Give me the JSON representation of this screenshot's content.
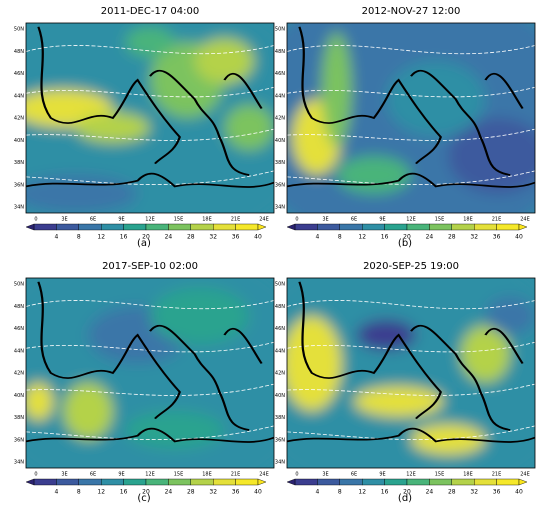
{
  "panels": [
    {
      "title": "2011-DEC-17 04:00",
      "label": "(a)"
    },
    {
      "title": "2012-NOV-27 12:00",
      "label": "(b)"
    },
    {
      "title": "2017-SEP-10 02:00",
      "label": "(c)"
    },
    {
      "title": "2020-SEP-25 19:00",
      "label": "(d)"
    }
  ],
  "lat_ticks": [
    "50N",
    "48N",
    "46N",
    "44N",
    "42N",
    "40N",
    "38N",
    "36N",
    "34N"
  ],
  "lon_ticks": [
    "0",
    "3E",
    "6E",
    "9E",
    "12E",
    "15E",
    "18E",
    "21E",
    "24E"
  ],
  "colorbar_ticks": [
    4,
    8,
    12,
    16,
    20,
    24,
    28,
    32,
    36,
    40
  ]
}
